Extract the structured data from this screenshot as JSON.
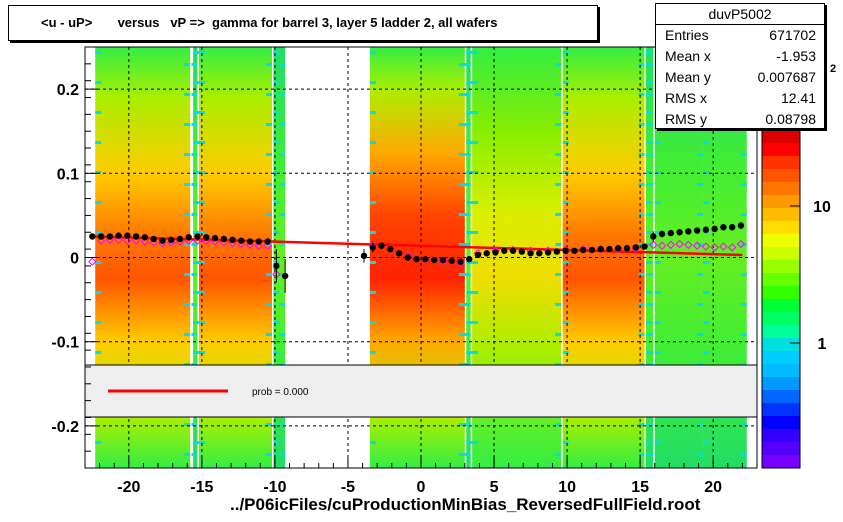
{
  "chart_data": {
    "type": "scatter",
    "title": "<u - uP>       versus   vP =>  gamma for barrel 3, layer 5 ladder 2, all wafers",
    "xlabel": "../P06icFiles/cuProductionMinBias_ReversedFullField.root",
    "ylabel": "",
    "xlim": [
      -23,
      23
    ],
    "ylim": [
      -0.25,
      0.25
    ],
    "x_ticks": [
      -20,
      -15,
      -10,
      -5,
      0,
      5,
      10,
      15,
      20
    ],
    "y_ticks": [
      -0.2,
      -0.1,
      0,
      0.1,
      0.2
    ],
    "y_tick_labels": [
      "-0.2",
      "-0.1",
      "0",
      "0.1",
      "0.2"
    ],
    "grid": true,
    "series": [
      {
        "name": "profile",
        "color": "#000000",
        "x": [
          -22.5,
          -21.9,
          -21.3,
          -20.7,
          -20.1,
          -19.5,
          -18.9,
          -18.3,
          -17.7,
          -17.1,
          -16.5,
          -15.9,
          -15.3,
          -14.7,
          -14.1,
          -13.5,
          -12.9,
          -12.3,
          -11.7,
          -11.1,
          -10.5,
          -9.9,
          -9.3,
          -3.9,
          -3.3,
          -2.7,
          -2.1,
          -1.5,
          -0.9,
          -0.3,
          0.3,
          0.9,
          1.5,
          2.1,
          2.7,
          3.3,
          3.9,
          4.5,
          5.1,
          5.7,
          6.3,
          6.9,
          7.5,
          8.1,
          8.7,
          9.3,
          9.9,
          10.5,
          11.1,
          11.7,
          12.3,
          12.9,
          13.5,
          14.1,
          14.7,
          15.3,
          15.9,
          16.5,
          17.1,
          17.7,
          18.3,
          18.9,
          19.5,
          20.1,
          20.7,
          21.3,
          21.9
        ],
        "y": [
          0.025,
          0.025,
          0.025,
          0.026,
          0.026,
          0.025,
          0.024,
          0.022,
          0.02,
          0.021,
          0.022,
          0.024,
          0.025,
          0.024,
          0.023,
          0.022,
          0.021,
          0.02,
          0.019,
          0.019,
          0.019,
          -0.01,
          -0.022,
          0.002,
          0.012,
          0.014,
          0.01,
          0.005,
          0.0,
          -0.002,
          -0.002,
          -0.003,
          -0.003,
          -0.004,
          -0.005,
          -0.002,
          0.003,
          0.005,
          0.006,
          0.008,
          0.008,
          0.007,
          0.005,
          0.005,
          0.006,
          0.007,
          0.008,
          0.008,
          0.009,
          0.009,
          0.01,
          0.01,
          0.011,
          0.011,
          0.012,
          0.013,
          0.025,
          0.028,
          0.029,
          0.03,
          0.031,
          0.032,
          0.033,
          0.034,
          0.036,
          0.036,
          0.038
        ],
        "error": [
          0.003,
          0.003,
          0.003,
          0.003,
          0.003,
          0.003,
          0.003,
          0.003,
          0.003,
          0.003,
          0.003,
          0.003,
          0.003,
          0.003,
          0.003,
          0.003,
          0.003,
          0.003,
          0.003,
          0.003,
          0.004,
          0.02,
          0.02,
          0.008,
          0.006,
          0.004,
          0.003,
          0.003,
          0.003,
          0.003,
          0.003,
          0.003,
          0.003,
          0.003,
          0.003,
          0.003,
          0.003,
          0.003,
          0.003,
          0.003,
          0.003,
          0.003,
          0.003,
          0.003,
          0.003,
          0.003,
          0.003,
          0.003,
          0.003,
          0.003,
          0.003,
          0.003,
          0.003,
          0.003,
          0.003,
          0.003,
          0.006,
          0.004,
          0.003,
          0.003,
          0.003,
          0.003,
          0.003,
          0.003,
          0.003,
          0.003,
          0.004
        ]
      },
      {
        "name": "gauss",
        "color": "#ff00ff",
        "x": [
          -22.5,
          -21.9,
          -21.3,
          -20.7,
          -20.1,
          -19.5,
          -18.9,
          -18.3,
          -17.7,
          -17.1,
          -16.5,
          -15.9,
          -15.3,
          -14.7,
          -14.1,
          -13.5,
          -12.9,
          -12.3,
          -11.7,
          -11.1,
          -10.5,
          -9.9,
          -3.3,
          -2.1,
          -0.9,
          0.3,
          1.5,
          2.7,
          3.9,
          5.1,
          6.3,
          7.5,
          8.7,
          9.9,
          11.1,
          12.3,
          13.5,
          14.7,
          15.9,
          16.5,
          17.1,
          17.7,
          18.3,
          18.9,
          19.5,
          20.1,
          20.7,
          21.3,
          21.9
        ],
        "y": [
          -0.005,
          0.02,
          0.021,
          0.021,
          0.02,
          0.02,
          0.019,
          0.018,
          0.017,
          0.018,
          0.019,
          0.02,
          0.02,
          0.02,
          0.019,
          0.018,
          0.017,
          0.016,
          0.015,
          0.014,
          0.014,
          -0.02,
          0.014,
          0.01,
          0.002,
          -0.002,
          -0.004,
          -0.006,
          0.005,
          0.008,
          0.009,
          0.008,
          0.008,
          0.009,
          0.01,
          0.01,
          0.01,
          0.011,
          0.015,
          0.014,
          0.015,
          0.016,
          0.015,
          0.014,
          0.013,
          0.012,
          0.013,
          0.012,
          0.016
        ]
      },
      {
        "name": "fit",
        "color": "#ff0000",
        "x": [
          -22.5,
          22.0
        ],
        "y": [
          0.025,
          0.003
        ]
      }
    ],
    "legend": {
      "entry": "prob = 0.000",
      "color": "#ff0000"
    },
    "stats": {
      "name": "duvP5002",
      "entries_label": "Entries",
      "entries": "671702",
      "meanx_label": "Mean x",
      "meanx": "-1.953",
      "meany_label": "Mean y",
      "meany": "0.007687",
      "rmsx_label": "RMS x",
      "rmsx": "12.41",
      "rmsy_label": "RMS y",
      "rmsy": "0.08798"
    },
    "colorbar": {
      "scale": "log",
      "tick_labels": [
        "1",
        "10"
      ],
      "exponent_label": "2",
      "palette": [
        "#7700ff",
        "#5500ff",
        "#3300ff",
        "#0000ff",
        "#0033ff",
        "#0066ff",
        "#0099ff",
        "#00bbff",
        "#00ccff",
        "#00e0e0",
        "#00ff99",
        "#00ff66",
        "#00ff33",
        "#33ff00",
        "#66ff00",
        "#99ff00",
        "#ccff00",
        "#eeff00",
        "#ffdd00",
        "#ffbb00",
        "#ff9900",
        "#ff7700",
        "#ff5500",
        "#ff3300",
        "#ff0000",
        "#dd0000"
      ]
    }
  }
}
